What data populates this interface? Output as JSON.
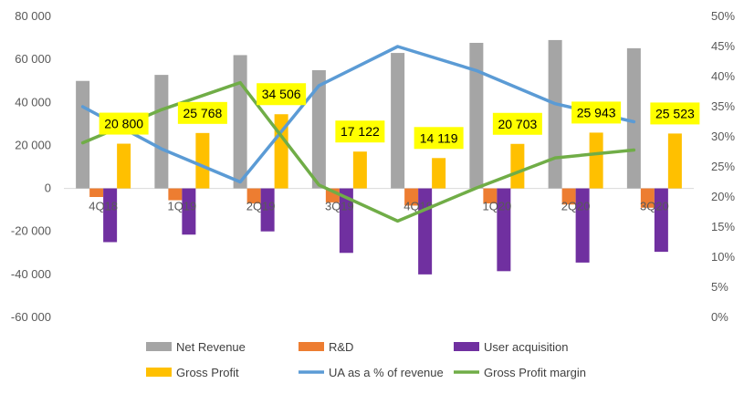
{
  "chart_data": {
    "type": "bar",
    "categories": [
      "4Q18",
      "1Q19",
      "2Q19",
      "3Q19",
      "4Q19",
      "1Q20",
      "2Q20",
      "3Q20"
    ],
    "series": [
      {
        "name": "Net Revenue",
        "kind": "bar",
        "axis": "left",
        "color": "#a5a5a5",
        "values": [
          50000,
          52800,
          62000,
          55000,
          63000,
          67700,
          69000,
          65200
        ]
      },
      {
        "name": "R&D",
        "kind": "bar",
        "axis": "left",
        "color": "#ed7d31",
        "values": [
          -4000,
          -5500,
          -7000,
          -6500,
          -8000,
          -7000,
          -7500,
          -9000
        ]
      },
      {
        "name": "User acquisition",
        "kind": "bar",
        "axis": "left",
        "color": "#7030a0",
        "values": [
          -25000,
          -21500,
          -20000,
          -30000,
          -40000,
          -38500,
          -34500,
          -29500
        ]
      },
      {
        "name": "Gross Profit",
        "kind": "bar",
        "axis": "left",
        "color": "#ffc000",
        "values": [
          20800,
          25768,
          34506,
          17122,
          14119,
          20703,
          25943,
          25523
        ],
        "data_labels": [
          "20 800",
          "25 768",
          "34 506",
          "17 122",
          "14 119",
          "20 703",
          "25 943",
          "25 523"
        ]
      },
      {
        "name": "UA as a % of revenue",
        "kind": "line",
        "axis": "right",
        "color": "#5b9bd5",
        "values": [
          35.0,
          28.0,
          22.5,
          38.5,
          45.0,
          41.0,
          35.5,
          32.5
        ]
      },
      {
        "name": "Gross Profit margin",
        "kind": "line",
        "axis": "right",
        "color": "#70ad47",
        "values": [
          29.0,
          34.5,
          39.0,
          22.0,
          16.0,
          21.5,
          26.5,
          27.8
        ]
      }
    ],
    "y_left": {
      "min": -60000,
      "max": 80000,
      "ticks": [
        "80 000",
        "60 000",
        "40 000",
        "20 000",
        "0",
        "-20 000",
        "-40 000",
        "-60 000"
      ]
    },
    "y_right": {
      "min": 0,
      "max": 50,
      "ticks": [
        "50%",
        "45%",
        "40%",
        "35%",
        "30%",
        "25%",
        "20%",
        "15%",
        "10%",
        "5%",
        "0%"
      ]
    },
    "legend_position": "bottom",
    "grid": false,
    "label_highlight_color": "#ffff00"
  }
}
